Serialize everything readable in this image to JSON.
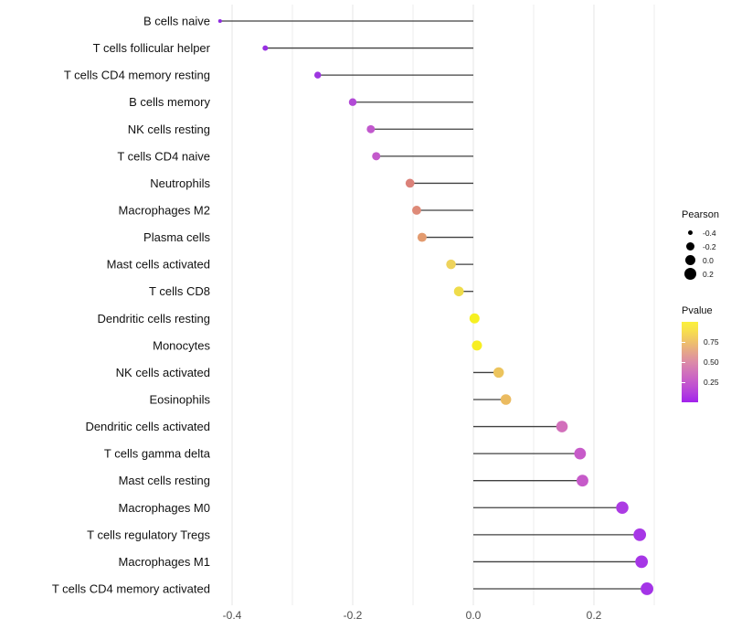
{
  "chart_data": {
    "type": "scatter",
    "variant": "horizontal-lollipop",
    "title": "",
    "xlabel": "",
    "ylabel": "",
    "xlim": [
      -0.43,
      0.32
    ],
    "grid": "on",
    "x_tick_labels": [
      "-0.4",
      "-0.2",
      "0.0",
      "0.2"
    ],
    "x_tick_values": [
      -0.4,
      -0.2,
      0.0,
      0.2
    ],
    "x_grid_values": [
      -0.4,
      -0.3,
      -0.2,
      -0.1,
      0.0,
      0.1,
      0.2,
      0.3
    ],
    "baseline_value": 0.0,
    "size_mapping": "Pearson",
    "color_mapping": "Pvalue",
    "rows": [
      {
        "label": "B cells naive",
        "pearson": -0.42,
        "pvalue": 0.02,
        "color": "#8F2BE0"
      },
      {
        "label": "T cells follicular helper",
        "pearson": -0.345,
        "pvalue": 0.04,
        "color": "#982FE2"
      },
      {
        "label": "T cells CD4 memory resting",
        "pearson": -0.258,
        "pvalue": 0.06,
        "color": "#9D36E0"
      },
      {
        "label": "B cells memory",
        "pearson": -0.2,
        "pvalue": 0.13,
        "color": "#B24AD6"
      },
      {
        "label": "NK cells resting",
        "pearson": -0.17,
        "pvalue": 0.22,
        "color": "#C158CD"
      },
      {
        "label": "T cells CD4 naive",
        "pearson": -0.161,
        "pvalue": 0.23,
        "color": "#C35ACB"
      },
      {
        "label": "Neutrophils",
        "pearson": -0.105,
        "pvalue": 0.48,
        "color": "#DB8179"
      },
      {
        "label": "Macrophages M2",
        "pearson": -0.094,
        "pvalue": 0.51,
        "color": "#DE8A78"
      },
      {
        "label": "Plasma cells",
        "pearson": -0.085,
        "pvalue": 0.56,
        "color": "#E39B6F"
      },
      {
        "label": "Mast cells activated",
        "pearson": -0.037,
        "pvalue": 0.86,
        "color": "#EED35C"
      },
      {
        "label": "T cells CD8",
        "pearson": -0.024,
        "pvalue": 0.89,
        "color": "#EFDC4B"
      },
      {
        "label": "Dendritic cells resting",
        "pearson": 0.002,
        "pvalue": 0.98,
        "color": "#F6F021"
      },
      {
        "label": "Monocytes",
        "pearson": 0.006,
        "pvalue": 0.97,
        "color": "#F7EE22"
      },
      {
        "label": "NK cells activated",
        "pearson": 0.042,
        "pvalue": 0.79,
        "color": "#ECC45D"
      },
      {
        "label": "Eosinophils",
        "pearson": 0.054,
        "pvalue": 0.76,
        "color": "#EBBB60"
      },
      {
        "label": "Dendritic cells activated",
        "pearson": 0.147,
        "pvalue": 0.38,
        "color": "#D26FBB"
      },
      {
        "label": "T cells gamma delta",
        "pearson": 0.177,
        "pvalue": 0.29,
        "color": "#C75BC9"
      },
      {
        "label": "Mast cells resting",
        "pearson": 0.181,
        "pvalue": 0.29,
        "color": "#C65AC9"
      },
      {
        "label": "Macrophages M0",
        "pearson": 0.247,
        "pvalue": 0.1,
        "color": "#AC3BE3"
      },
      {
        "label": "T cells regulatory  Tregs",
        "pearson": 0.276,
        "pvalue": 0.07,
        "color": "#A737E6"
      },
      {
        "label": "Macrophages M1",
        "pearson": 0.279,
        "pvalue": 0.07,
        "color": "#A636E6"
      },
      {
        "label": "T cells CD4 memory activated",
        "pearson": 0.288,
        "pvalue": 0.05,
        "color": "#A434E7"
      }
    ]
  },
  "legend": {
    "pearson": {
      "title": "Pearson",
      "items": [
        {
          "label": "-0.4",
          "diameter": 5
        },
        {
          "label": "-0.2",
          "diameter": 9
        },
        {
          "label": "0.0",
          "diameter": 11
        },
        {
          "label": "0.2",
          "diameter": 13
        }
      ]
    },
    "pvalue": {
      "title": "Pvalue",
      "ticks": [
        {
          "label": "0.75",
          "position": 0.75
        },
        {
          "label": "0.50",
          "position": 0.5
        },
        {
          "label": "0.25",
          "position": 0.25
        }
      ],
      "gradient_low_color": "#A122EC",
      "gradient_high_color": "#FAF13C",
      "range": [
        0,
        1
      ]
    }
  },
  "colors": {
    "stem": "#404040",
    "gridline_major": "#E4E4E4",
    "gridline_minor": "#EDEDED",
    "axis_text": "#4D4D4D",
    "label_text": "#111111"
  }
}
